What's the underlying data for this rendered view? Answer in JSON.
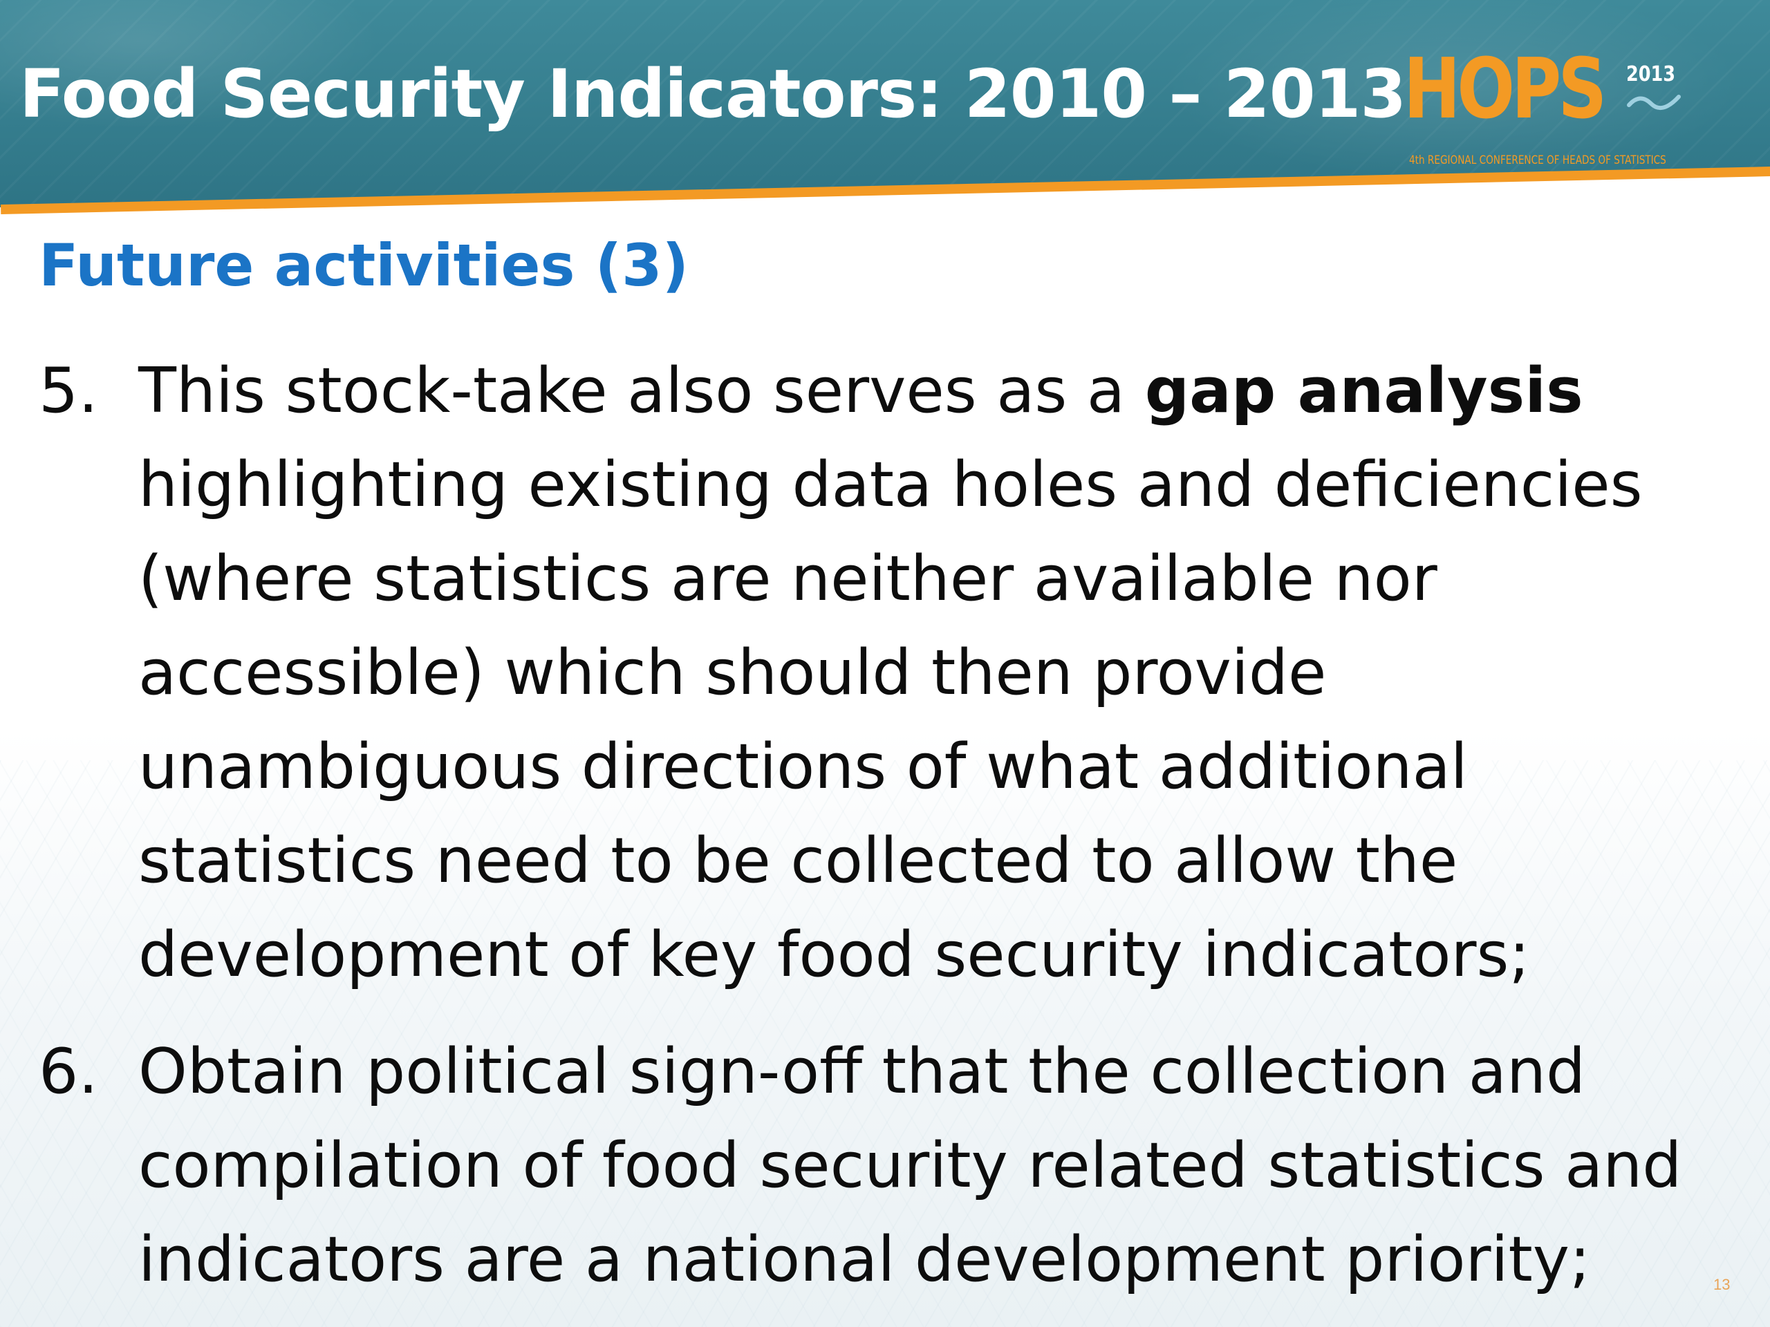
{
  "slide": {
    "title": "Food Security Indicators: 2010 – 2013",
    "logo": {
      "text": "HOPS",
      "year": "2013",
      "subtitle": "4th REGIONAL CONFERENCE OF HEADS OF STATISTICS"
    },
    "subtitle": "Future activities (3)",
    "items": [
      {
        "number": "5.",
        "text_before": "This stock-take also serves as a ",
        "bold": "gap analysis",
        "text_after": " highlighting existing data holes and deficiencies (where statistics are neither available nor accessible) which should then provide unambiguous directions of what additional statistics need to be collected to allow the development of key food security indicators;"
      },
      {
        "number": "6.",
        "text": "Obtain political sign-off that the collection and compilation of food security related statistics and indicators are a national development priority;"
      }
    ],
    "page_number": "13"
  },
  "colors": {
    "header": "#2e7485",
    "accent_orange": "#f39a24",
    "subtitle_blue": "#1b74c6",
    "body_text": "#0d0d0d"
  }
}
